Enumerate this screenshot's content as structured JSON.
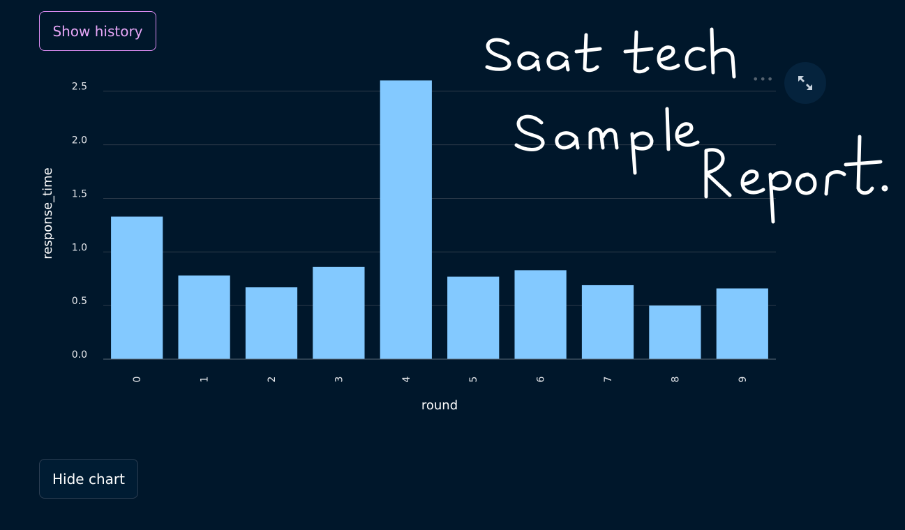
{
  "buttons": {
    "show_history": "Show history",
    "hide_chart": "Hide chart"
  },
  "toolbar": {
    "more_icon": "ellipsis-icon",
    "expand_icon": "fullscreen-expand-icon"
  },
  "annotation_lines": [
    "Saat tech",
    "Sample",
    "Report."
  ],
  "colors": {
    "background": "#00172b",
    "bar": "#83c9ff",
    "history_button": "#e7a6f7"
  },
  "chart_data": {
    "type": "bar",
    "title": "",
    "xlabel": "round",
    "ylabel": "response_time",
    "categories": [
      "0",
      "1",
      "2",
      "3",
      "4",
      "5",
      "6",
      "7",
      "8",
      "9"
    ],
    "values": [
      1.33,
      0.78,
      0.67,
      0.86,
      2.6,
      0.77,
      0.83,
      0.69,
      0.5,
      0.66
    ],
    "ylim": [
      0,
      2.7
    ],
    "yticks": [
      "0.0",
      "0.5",
      "1.0",
      "1.5",
      "2.0",
      "2.5"
    ],
    "grid": true
  }
}
